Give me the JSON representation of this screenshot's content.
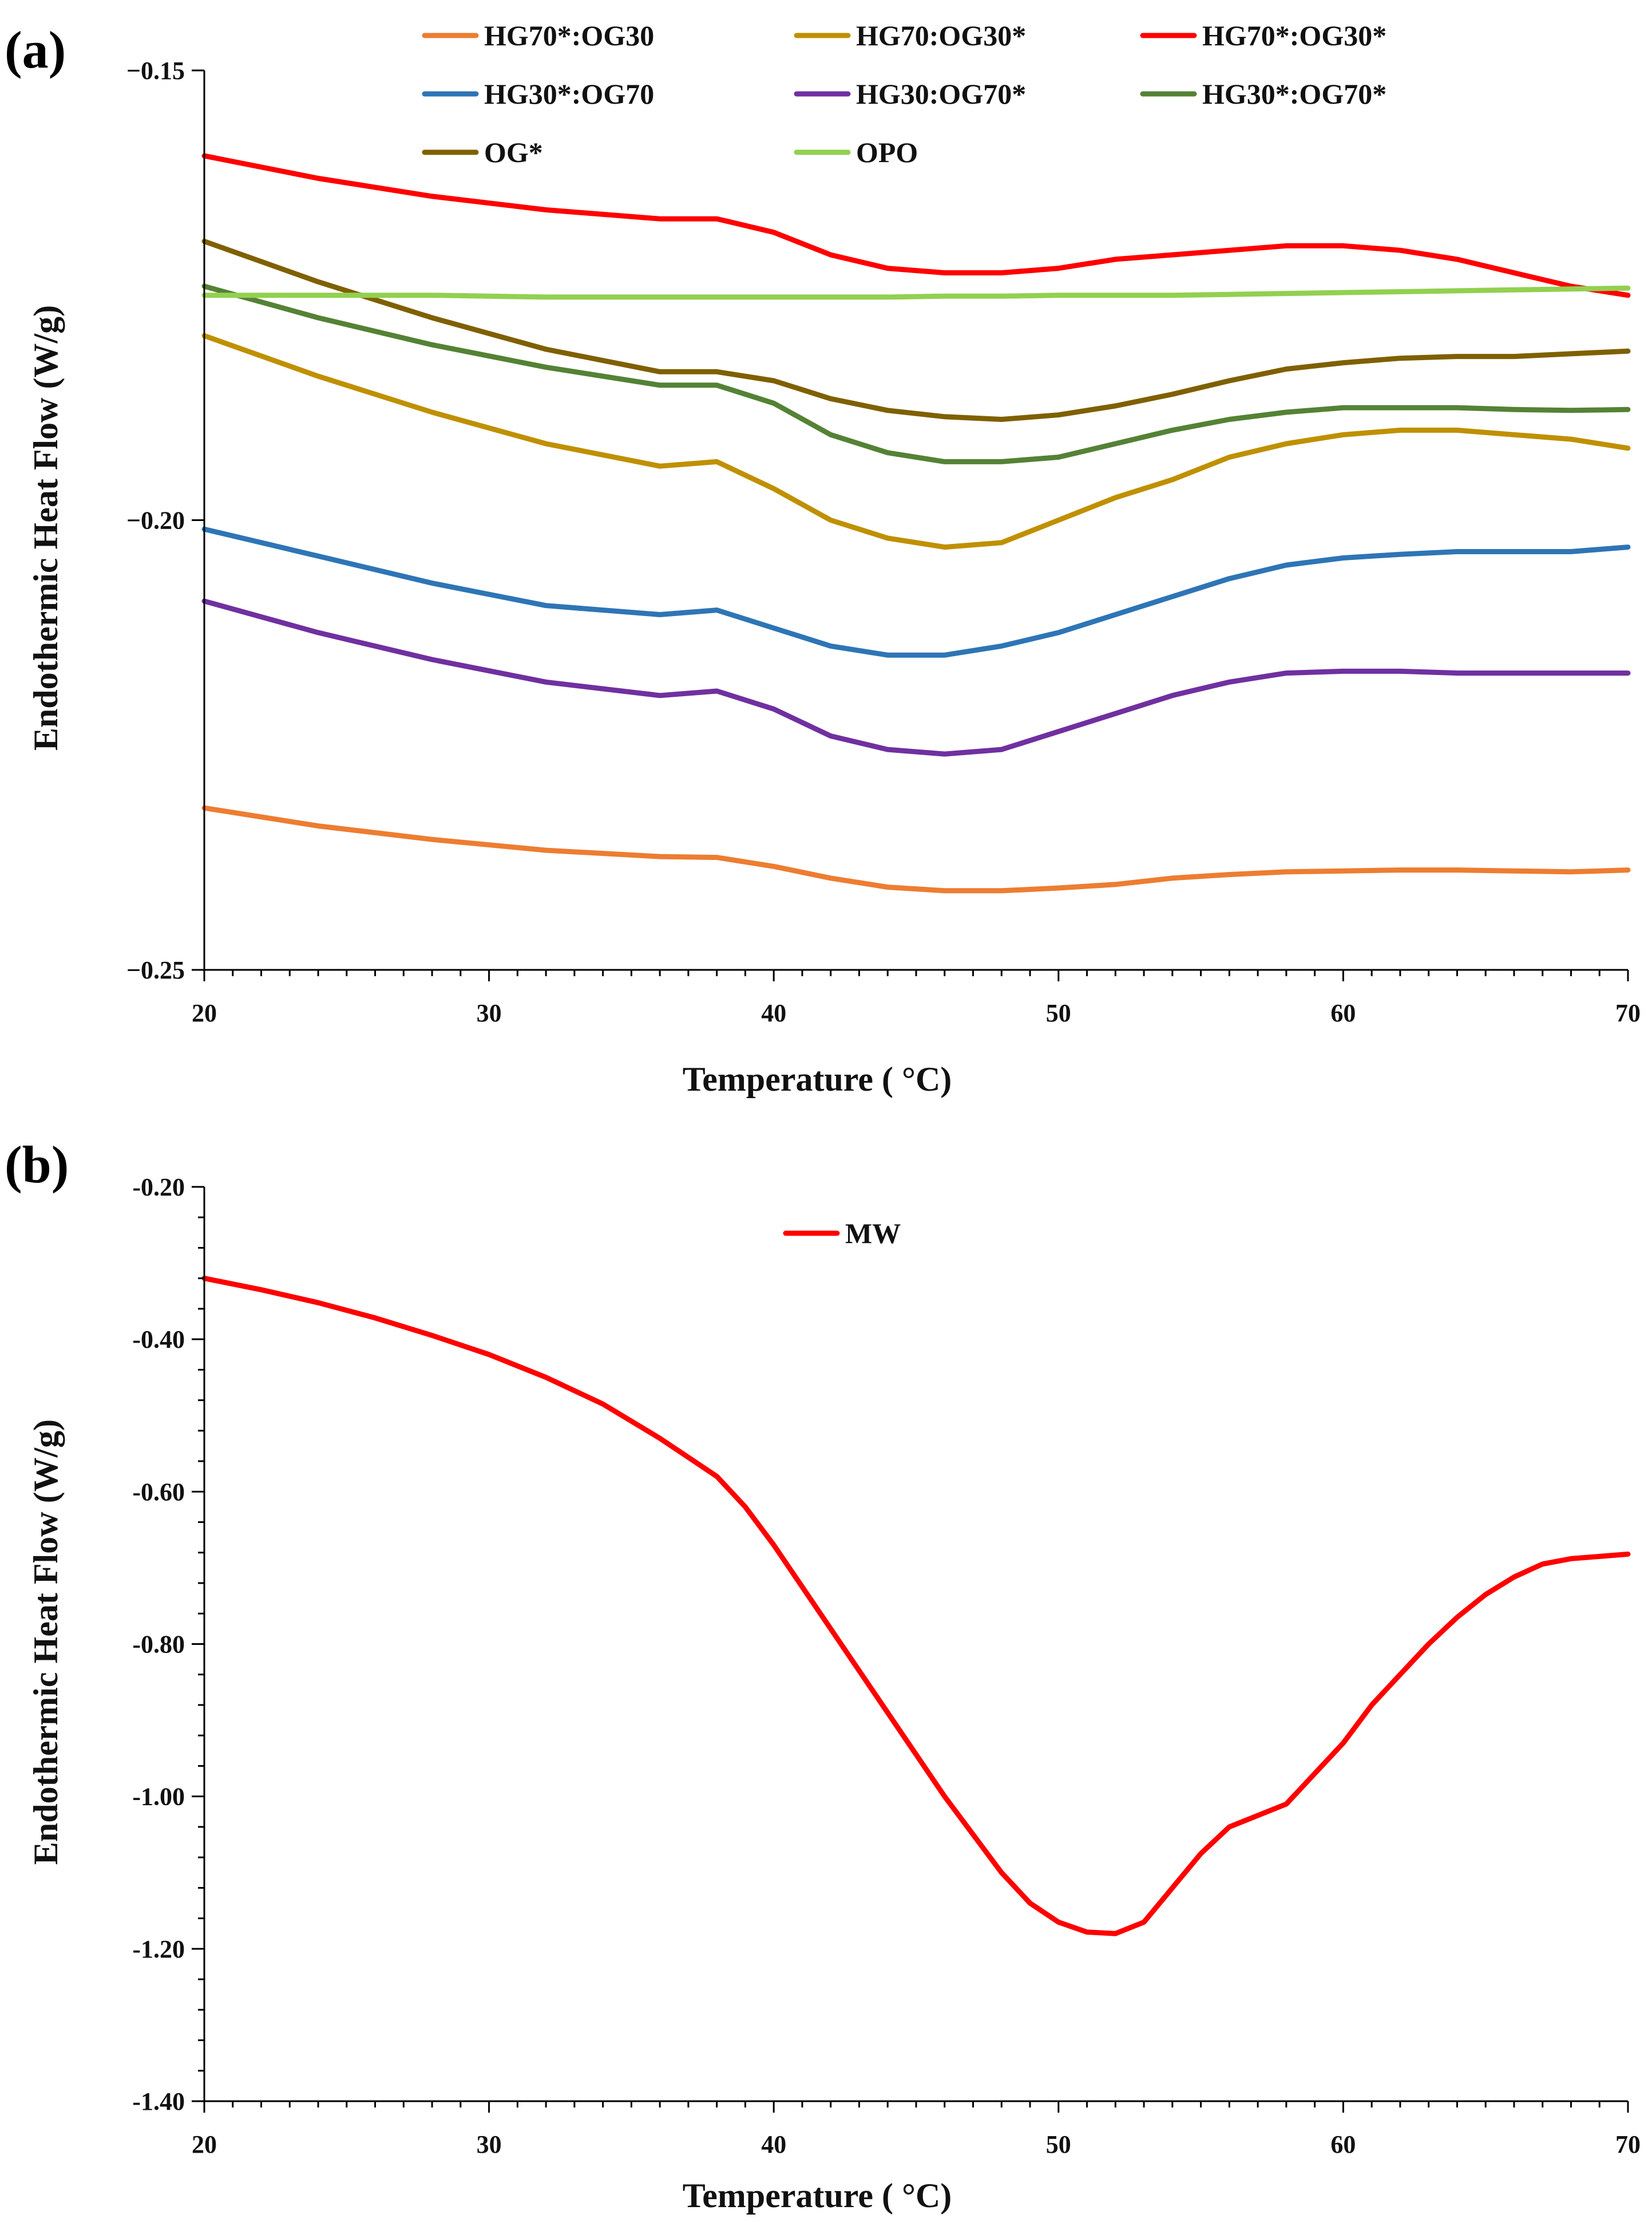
{
  "chart_data": [
    {
      "panel_label": "(a)",
      "type": "line",
      "xlabel": "Temperature ( °C)",
      "ylabel": "Endothermic Heat Flow (W/g)",
      "xlim": [
        20,
        70
      ],
      "ylim": [
        -0.25,
        -0.15
      ],
      "xticks": [
        20,
        30,
        40,
        50,
        60,
        70
      ],
      "xtick_labels": [
        "20",
        "30",
        "40",
        "50",
        "60",
        "70"
      ],
      "yticks": [
        -0.25,
        -0.2,
        -0.15
      ],
      "ytick_labels": [
        "−0.25",
        "−0.20",
        "−0.15"
      ],
      "grid": false,
      "legend_position": "top",
      "x": [
        20,
        24,
        28,
        32,
        36,
        38,
        40,
        42,
        44,
        46,
        48,
        50,
        52,
        54,
        56,
        58,
        60,
        62,
        64,
        66,
        68,
        70
      ],
      "series": [
        {
          "name": "HG70*:OG30",
          "color": "#ED7D31",
          "values": [
            -0.232,
            -0.234,
            -0.2355,
            -0.2367,
            -0.2374,
            -0.2375,
            -0.2385,
            -0.2398,
            -0.2408,
            -0.2412,
            -0.2412,
            -0.2409,
            -0.2405,
            -0.2398,
            -0.2394,
            -0.2391,
            -0.239,
            -0.2389,
            -0.2389,
            -0.239,
            -0.2391,
            -0.2389
          ]
        },
        {
          "name": "HG70:OG30*",
          "color": "#BF9000",
          "values": [
            -0.1795,
            -0.184,
            -0.188,
            -0.1915,
            -0.194,
            -0.1935,
            -0.1965,
            -0.2,
            -0.202,
            -0.203,
            -0.2025,
            -0.2,
            -0.1975,
            -0.1955,
            -0.193,
            -0.1915,
            -0.1905,
            -0.19,
            -0.19,
            -0.1905,
            -0.191,
            -0.192
          ]
        },
        {
          "name": "HG70*:OG30*",
          "color": "#FF0000",
          "values": [
            -0.1595,
            -0.162,
            -0.164,
            -0.1655,
            -0.1665,
            -0.1665,
            -0.168,
            -0.1705,
            -0.172,
            -0.1725,
            -0.1725,
            -0.172,
            -0.171,
            -0.1705,
            -0.17,
            -0.1695,
            -0.1695,
            -0.17,
            -0.171,
            -0.1725,
            -0.174,
            -0.175
          ]
        },
        {
          "name": "HG30*:OG70",
          "color": "#2E75B6",
          "values": [
            -0.201,
            -0.204,
            -0.207,
            -0.2095,
            -0.2105,
            -0.21,
            -0.212,
            -0.214,
            -0.215,
            -0.215,
            -0.214,
            -0.2125,
            -0.2105,
            -0.2085,
            -0.2065,
            -0.205,
            -0.2042,
            -0.2038,
            -0.2035,
            -0.2035,
            -0.2035,
            -0.203
          ]
        },
        {
          "name": "HG30:OG70*",
          "color": "#7030A0",
          "values": [
            -0.209,
            -0.2125,
            -0.2155,
            -0.218,
            -0.2195,
            -0.219,
            -0.221,
            -0.224,
            -0.2255,
            -0.226,
            -0.2255,
            -0.2235,
            -0.2215,
            -0.2195,
            -0.218,
            -0.217,
            -0.2168,
            -0.2168,
            -0.217,
            -0.217,
            -0.217,
            -0.217
          ]
        },
        {
          "name": "HG30*:OG70*",
          "color": "#548235",
          "values": [
            -0.174,
            -0.1775,
            -0.1805,
            -0.183,
            -0.185,
            -0.185,
            -0.187,
            -0.1905,
            -0.1925,
            -0.1935,
            -0.1935,
            -0.193,
            -0.1915,
            -0.19,
            -0.1888,
            -0.188,
            -0.1875,
            -0.1875,
            -0.1875,
            -0.1877,
            -0.1878,
            -0.1877
          ]
        },
        {
          "name": "OG*",
          "color": "#7F6000",
          "values": [
            -0.169,
            -0.1735,
            -0.1775,
            -0.181,
            -0.1835,
            -0.1835,
            -0.1845,
            -0.1865,
            -0.1878,
            -0.1885,
            -0.1888,
            -0.1883,
            -0.1873,
            -0.186,
            -0.1845,
            -0.1832,
            -0.1825,
            -0.182,
            -0.1818,
            -0.1818,
            -0.1815,
            -0.1812
          ]
        },
        {
          "name": "OPO",
          "color": "#92D050",
          "values": [
            -0.175,
            -0.175,
            -0.175,
            -0.1752,
            -0.1752,
            -0.1752,
            -0.1752,
            -0.1752,
            -0.1752,
            -0.1751,
            -0.1751,
            -0.175,
            -0.175,
            -0.175,
            -0.1749,
            -0.1748,
            -0.1747,
            -0.1746,
            -0.1745,
            -0.1744,
            -0.1743,
            -0.1742
          ]
        }
      ]
    },
    {
      "panel_label": "(b)",
      "type": "line",
      "xlabel": "Temperature ( °C)",
      "ylabel": "Endothermic Heat Flow (W/g)",
      "xlim": [
        20,
        70
      ],
      "ylim": [
        -1.4,
        -0.2
      ],
      "xticks": [
        20,
        30,
        40,
        50,
        60,
        70
      ],
      "xtick_labels": [
        "20",
        "30",
        "40",
        "50",
        "60",
        "70"
      ],
      "yticks": [
        -1.4,
        -1.2,
        -1.0,
        -0.8,
        -0.6,
        -0.4,
        -0.2
      ],
      "ytick_labels": [
        "-1.40",
        "-1.20",
        "-1.00",
        "-0.80",
        "-0.60",
        "-0.40",
        "-0.20"
      ],
      "grid": false,
      "legend_position": "top-center",
      "x": [
        20,
        22,
        24,
        26,
        28,
        30,
        32,
        34,
        36,
        38,
        39,
        40,
        42,
        44,
        46,
        48,
        49,
        50,
        51,
        52,
        53,
        54,
        55,
        56,
        58,
        59,
        60,
        61,
        62,
        63,
        64,
        65,
        66,
        67,
        68,
        70
      ],
      "series": [
        {
          "name": "MW",
          "color": "#FF0000",
          "values": [
            -0.32,
            -0.335,
            -0.352,
            -0.372,
            -0.395,
            -0.42,
            -0.45,
            -0.485,
            -0.53,
            -0.58,
            -0.62,
            -0.67,
            -0.78,
            -0.89,
            -1.0,
            -1.1,
            -1.14,
            -1.165,
            -1.178,
            -1.18,
            -1.165,
            -1.12,
            -1.075,
            -1.04,
            -1.01,
            -0.97,
            -0.93,
            -0.88,
            -0.84,
            -0.8,
            -0.765,
            -0.735,
            -0.712,
            -0.695,
            -0.688,
            -0.682
          ]
        }
      ]
    }
  ]
}
